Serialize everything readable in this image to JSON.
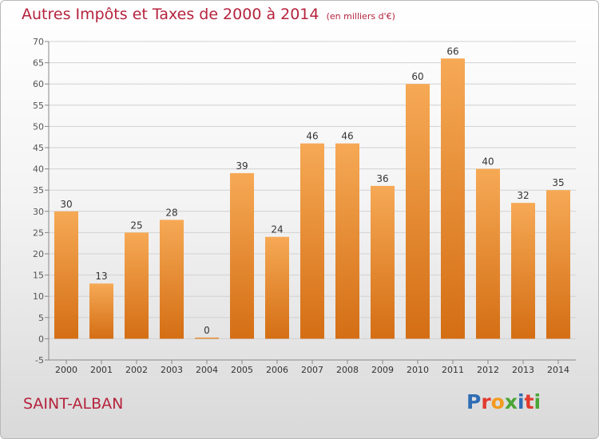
{
  "title": "Autres Impôts et Taxes de 2000 à 2014",
  "title_unit": "(en milliers d'€)",
  "location": "SAINT-ALBAN",
  "logo": {
    "letters": [
      "P",
      "r",
      "o",
      "x",
      "i",
      "t",
      "i"
    ],
    "colors": [
      "#2f6db5",
      "#e23a2e",
      "#f39a1e",
      "#4aa535",
      "#2f6db5",
      "#e23a2e",
      "#4aa535"
    ]
  },
  "chart_data": {
    "type": "bar",
    "categories": [
      "2000",
      "2001",
      "2002",
      "2003",
      "2004",
      "2005",
      "2006",
      "2007",
      "2008",
      "2009",
      "2010",
      "2011",
      "2012",
      "2013",
      "2014"
    ],
    "values": [
      30,
      13,
      25,
      28,
      0,
      39,
      24,
      46,
      46,
      36,
      60,
      66,
      40,
      32,
      35
    ],
    "data_labels": [
      "30",
      "13",
      "25",
      "28",
      "0",
      "39",
      "24",
      "46",
      "46",
      "36",
      "60",
      "66",
      "40",
      "32",
      "35"
    ],
    "ylim": [
      -5,
      70
    ],
    "yticks": [
      -5,
      0,
      5,
      10,
      15,
      20,
      25,
      30,
      35,
      40,
      45,
      50,
      55,
      60,
      65,
      70
    ],
    "grid": true,
    "bar_color_top": "#f6a955",
    "bar_color_bottom": "#d46e14"
  }
}
